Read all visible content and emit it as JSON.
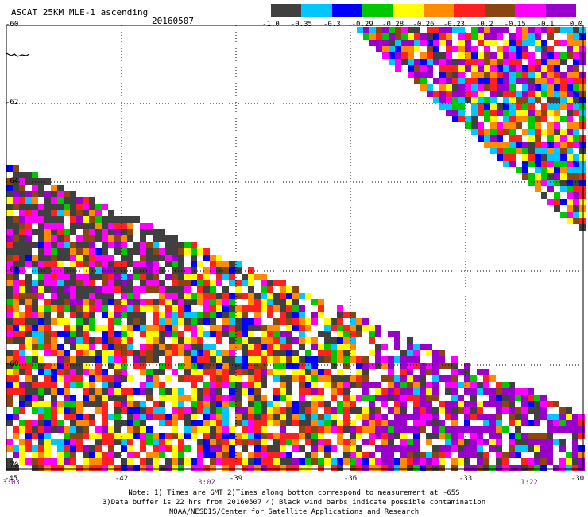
{
  "title": "ASCAT 25KM MLE-1 ascending",
  "date": "20160507",
  "legend": {
    "colors": [
      "#404040",
      "#00c8ff",
      "#0000ff",
      "#00c800",
      "#ffff00",
      "#ff8c00",
      "#ff2020",
      "#8b4513",
      "#ff00ff",
      "#9900cc"
    ],
    "labels": [
      "-1.0",
      "-0.35",
      "-0.3",
      "-0.29",
      "-0.28",
      "-0.26",
      "-0.23",
      "-0.2",
      "-0.15",
      "-0.1",
      "0.0"
    ]
  },
  "lat_labels": [
    "-60",
    "-62",
    "-64",
    "-66",
    "-68",
    "-70"
  ],
  "lon_labels": [
    "-45",
    "-42",
    "-39",
    "-36",
    "-33",
    "-30"
  ],
  "time_labels": [
    "3:03",
    "3:02",
    "1:22"
  ],
  "footer": [
    "Note: 1) Times are GMT 2)Times along bottom correspond to measurement at ~65S",
    "3)Data buffer is 22 hrs from 20160507 4) Black wind barbs indicate possible contamination",
    "NOAA/NESDIS/Center for Satellite Applications and Research"
  ]
}
